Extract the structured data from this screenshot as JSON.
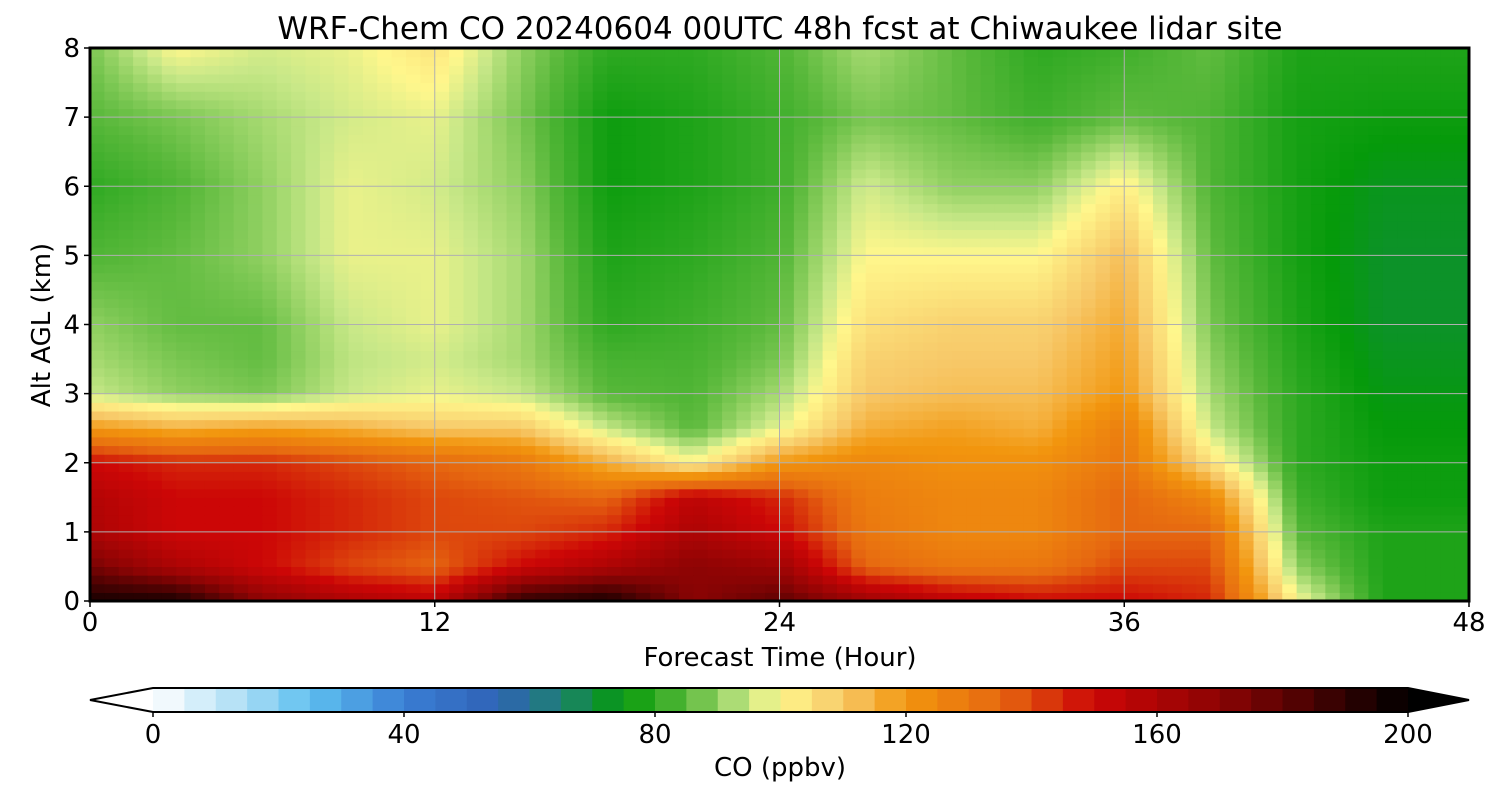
{
  "chart_data": {
    "type": "heatmap",
    "title": "WRF-Chem CO  20240604 00UTC 48h fcst at Chiwaukee lidar site",
    "xlabel": "Forecast Time (Hour)",
    "ylabel": "Alt AGL (km)",
    "xlim": [
      0,
      48
    ],
    "ylim": [
      0,
      8
    ],
    "xticks": [
      0,
      12,
      24,
      36,
      48
    ],
    "yticks": [
      0,
      1,
      2,
      3,
      4,
      5,
      6,
      7,
      8
    ],
    "grid": true,
    "x": [
      0,
      3,
      6,
      9,
      12,
      15,
      18,
      21,
      24,
      27,
      30,
      33,
      36,
      39,
      42,
      45,
      48
    ],
    "y": [
      0,
      0.5,
      1,
      1.5,
      2,
      2.5,
      3,
      3.5,
      4,
      5,
      6,
      7,
      8
    ],
    "z": [
      [
        195,
        195,
        170,
        160,
        155,
        190,
        195,
        170,
        180,
        165,
        155,
        150,
        150,
        145,
        100,
        78,
        78
      ],
      [
        175,
        160,
        150,
        140,
        135,
        150,
        160,
        170,
        165,
        135,
        130,
        130,
        140,
        140,
        90,
        78,
        78
      ],
      [
        160,
        150,
        150,
        145,
        140,
        140,
        145,
        160,
        150,
        130,
        125,
        125,
        135,
        135,
        85,
        78,
        78
      ],
      [
        158,
        150,
        150,
        145,
        140,
        138,
        135,
        155,
        145,
        128,
        125,
        125,
        135,
        125,
        82,
        76,
        76
      ],
      [
        150,
        145,
        145,
        140,
        135,
        130,
        115,
        100,
        120,
        125,
        122,
        122,
        130,
        105,
        80,
        76,
        76
      ],
      [
        120,
        115,
        118,
        115,
        110,
        110,
        95,
        85,
        98,
        115,
        118,
        115,
        128,
        95,
        80,
        75,
        75
      ],
      [
        95,
        90,
        88,
        95,
        98,
        95,
        85,
        84,
        92,
        110,
        112,
        112,
        120,
        92,
        80,
        74,
        74
      ],
      [
        92,
        88,
        86,
        94,
        96,
        92,
        83,
        83,
        88,
        108,
        110,
        110,
        118,
        90,
        79,
        73,
        73
      ],
      [
        90,
        86,
        86,
        95,
        98,
        92,
        80,
        82,
        86,
        105,
        108,
        108,
        116,
        88,
        78,
        72,
        72
      ],
      [
        84,
        86,
        90,
        98,
        98,
        92,
        78,
        80,
        84,
        100,
        100,
        100,
        112,
        86,
        77,
        72,
        72
      ],
      [
        80,
        84,
        90,
        98,
        96,
        90,
        76,
        78,
        82,
        96,
        90,
        90,
        102,
        84,
        77,
        73,
        73
      ],
      [
        85,
        88,
        92,
        96,
        98,
        88,
        76,
        78,
        82,
        88,
        86,
        82,
        86,
        84,
        77,
        76,
        76
      ],
      [
        88,
        100,
        96,
        98,
        104,
        90,
        80,
        80,
        84,
        92,
        86,
        80,
        82,
        86,
        78,
        78,
        78
      ]
    ],
    "colorbar": {
      "label": "CO  (ppbv)",
      "min": 0,
      "max": 200,
      "ticks": [
        0,
        40,
        80,
        120,
        160,
        200
      ],
      "extend": "both",
      "stops": [
        {
          "v": 0,
          "c": "#ffffff"
        },
        {
          "v": 15,
          "c": "#a8dcf4"
        },
        {
          "v": 25,
          "c": "#5ec0f0"
        },
        {
          "v": 40,
          "c": "#3a7ed4"
        },
        {
          "v": 55,
          "c": "#2f62b6"
        },
        {
          "v": 65,
          "c": "#1d8070"
        },
        {
          "v": 75,
          "c": "#059a0a"
        },
        {
          "v": 85,
          "c": "#58b83a"
        },
        {
          "v": 95,
          "c": "#c8e888"
        },
        {
          "v": 100,
          "c": "#fff78c"
        },
        {
          "v": 110,
          "c": "#f7c868"
        },
        {
          "v": 120,
          "c": "#f2960e"
        },
        {
          "v": 135,
          "c": "#e66810"
        },
        {
          "v": 150,
          "c": "#cc0606"
        },
        {
          "v": 170,
          "c": "#8c0404"
        },
        {
          "v": 200,
          "c": "#000000"
        }
      ]
    }
  }
}
